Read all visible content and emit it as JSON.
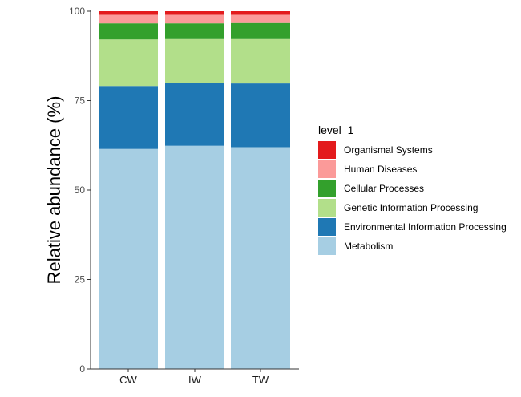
{
  "chart_data": {
    "type": "bar",
    "stacked": true,
    "title": "",
    "xlabel": "",
    "ylabel": "Relative abundance (%)",
    "ylim": [
      0,
      100
    ],
    "yticks": [
      0,
      25,
      50,
      75,
      100
    ],
    "categories": [
      "CW",
      "IW",
      "TW"
    ],
    "legend_title": "level_1",
    "legend_position": "right",
    "series": [
      {
        "name": "Metabolism",
        "color": "#a6cee3",
        "values": [
          61.5,
          62.4,
          62.0
        ]
      },
      {
        "name": "Environmental Information Processing",
        "color": "#1f78b4",
        "values": [
          17.6,
          17.6,
          17.8
        ]
      },
      {
        "name": "Genetic Information Processing",
        "color": "#b2df8a",
        "values": [
          13.0,
          12.2,
          12.4
        ]
      },
      {
        "name": "Cellular Processes",
        "color": "#33a02c",
        "values": [
          4.5,
          4.4,
          4.5
        ]
      },
      {
        "name": "Human Diseases",
        "color": "#fb9a99",
        "values": [
          2.4,
          2.4,
          2.3
        ]
      },
      {
        "name": "Organismal Systems",
        "color": "#e31a1c",
        "values": [
          1.0,
          1.0,
          1.0
        ]
      }
    ]
  }
}
